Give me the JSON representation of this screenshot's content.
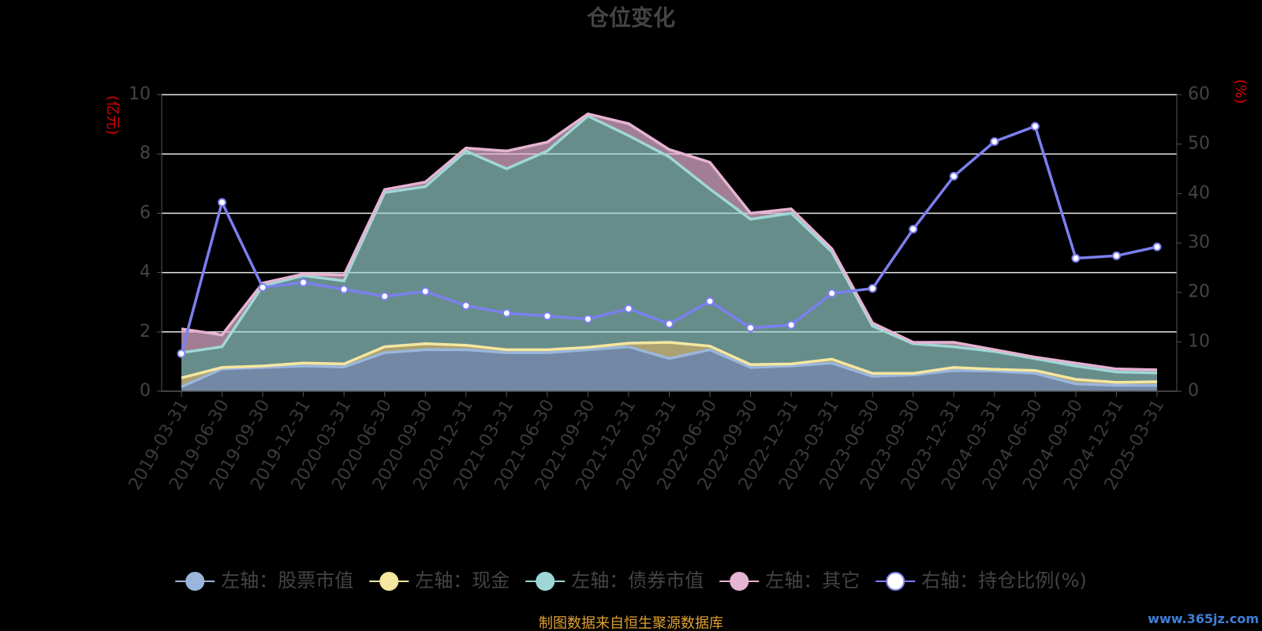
{
  "chart_data": {
    "type": "area",
    "title": "仓位变化",
    "left_unit": "(亿元)",
    "right_unit": "(%)",
    "ylim_left": [
      0,
      10
    ],
    "yticks_left": [
      0,
      2,
      4,
      6,
      8,
      10
    ],
    "ylim_right": [
      0,
      60
    ],
    "yticks_right": [
      0,
      10,
      20,
      30,
      40,
      50,
      60
    ],
    "grid": true,
    "legend_position": "bottom",
    "categories": [
      "2019-03-31",
      "2019-06-30",
      "2019-09-30",
      "2019-12-31",
      "2020-03-31",
      "2020-06-30",
      "2020-09-30",
      "2020-12-31",
      "2021-03-31",
      "2021-06-30",
      "2021-09-30",
      "2021-12-31",
      "2022-03-31",
      "2022-06-30",
      "2022-09-30",
      "2022-12-31",
      "2023-03-31",
      "2023-06-30",
      "2023-09-30",
      "2023-12-31",
      "2024-03-31",
      "2024-06-30",
      "2024-09-30",
      "2024-12-31",
      "2025-03-31"
    ],
    "series": [
      {
        "name": "左轴：股票市值",
        "axis": "left",
        "kind": "stacked-area",
        "color": "#9ab6dc",
        "values": [
          0.15,
          0.75,
          0.8,
          0.85,
          0.82,
          1.3,
          1.4,
          1.4,
          1.3,
          1.3,
          1.4,
          1.5,
          1.1,
          1.4,
          0.8,
          0.85,
          0.95,
          0.5,
          0.55,
          0.7,
          0.68,
          0.6,
          0.25,
          0.2,
          0.2
        ]
      },
      {
        "name": "左轴：现金",
        "axis": "left",
        "kind": "stacked-area",
        "color": "#f5e6a0",
        "values": [
          0.3,
          0.05,
          0.05,
          0.1,
          0.1,
          0.2,
          0.2,
          0.15,
          0.1,
          0.1,
          0.08,
          0.12,
          0.55,
          0.12,
          0.1,
          0.07,
          0.13,
          0.1,
          0.05,
          0.1,
          0.06,
          0.1,
          0.15,
          0.1,
          0.12
        ]
      },
      {
        "name": "左轴：债券市值",
        "axis": "left",
        "kind": "stacked-area",
        "color": "#9ed8d6",
        "values": [
          0.85,
          0.7,
          2.7,
          2.95,
          2.8,
          5.2,
          5.3,
          6.55,
          6.1,
          6.7,
          7.8,
          7.0,
          6.25,
          5.3,
          4.9,
          5.08,
          3.62,
          1.6,
          1.0,
          0.7,
          0.6,
          0.4,
          0.45,
          0.35,
          0.3
        ]
      },
      {
        "name": "左轴：其它",
        "axis": "left",
        "kind": "stacked-area",
        "color": "#e6b3d3",
        "values": [
          0.8,
          0.4,
          0.1,
          0.05,
          0.2,
          0.1,
          0.15,
          0.1,
          0.6,
          0.3,
          0.07,
          0.4,
          0.25,
          0.9,
          0.2,
          0.15,
          0.1,
          0.1,
          0.05,
          0.15,
          0.06,
          0.05,
          0.1,
          0.1,
          0.1
        ]
      },
      {
        "name": "右轴：持仓比例(%)",
        "axis": "right",
        "kind": "line",
        "color": "#7b7ff0",
        "values": [
          7.6,
          38.2,
          21.0,
          22.0,
          20.6,
          19.2,
          20.2,
          17.3,
          15.8,
          15.2,
          14.6,
          16.7,
          13.6,
          18.2,
          12.8,
          13.4,
          19.8,
          20.8,
          32.8,
          43.5,
          50.5,
          53.6,
          26.9,
          27.4,
          29.2
        ]
      }
    ]
  },
  "legend": {
    "items": [
      {
        "label": "左轴：股票市值",
        "color": "#9ab6dc"
      },
      {
        "label": "左轴：现金",
        "color": "#f5e6a0"
      },
      {
        "label": "左轴：债券市值",
        "color": "#9ed8d6"
      },
      {
        "label": "左轴：其它",
        "color": "#e6b3d3"
      },
      {
        "label": "右轴：持仓比例(%)",
        "color": "#ffffff",
        "stroke": "#7b7ff0"
      }
    ]
  },
  "footer": {
    "source": "制图数据来自恒生聚源数据库",
    "watermark": "www.365jz.com"
  }
}
